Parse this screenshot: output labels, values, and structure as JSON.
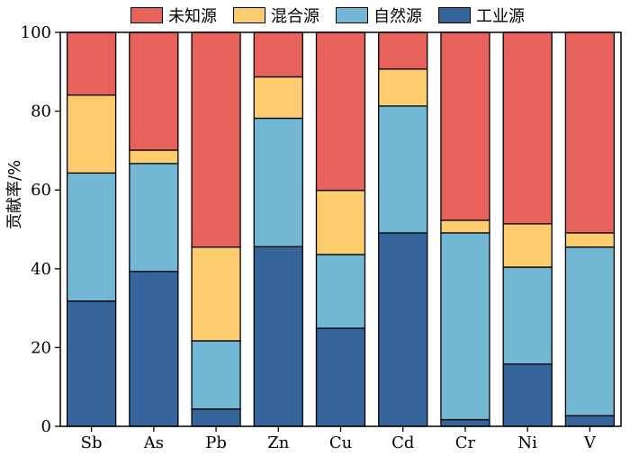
{
  "chart_data": {
    "type": "bar",
    "stacked": true,
    "categories": [
      "Sb",
      "As",
      "Pb",
      "Zn",
      "Cu",
      "Cd",
      "Cr",
      "Ni",
      "V"
    ],
    "series": [
      {
        "name": "工业源",
        "color": "#35659A",
        "values": [
          31.8,
          39.3,
          4.4,
          45.6,
          24.9,
          49.1,
          1.7,
          15.8,
          2.7
        ]
      },
      {
        "name": "自然源",
        "color": "#72B8D4",
        "values": [
          32.5,
          27.4,
          17.3,
          32.6,
          18.7,
          32.2,
          47.4,
          24.6,
          42.8
        ]
      },
      {
        "name": "混合源",
        "color": "#FDCC6F",
        "values": [
          19.8,
          3.4,
          23.8,
          10.5,
          16.3,
          9.4,
          3.2,
          11.0,
          3.6
        ]
      },
      {
        "name": "未知源",
        "color": "#E7625A",
        "values": [
          15.9,
          29.9,
          54.5,
          11.3,
          40.1,
          9.3,
          47.7,
          48.6,
          50.9
        ]
      }
    ],
    "legend_order": [
      "未知源",
      "混合源",
      "自然源",
      "工业源"
    ],
    "ylabel": "贡献率/%",
    "ylim": [
      0,
      100
    ],
    "yticks": [
      0,
      20,
      40,
      60,
      80,
      100
    ],
    "legend_placement": "top",
    "grid": false
  }
}
